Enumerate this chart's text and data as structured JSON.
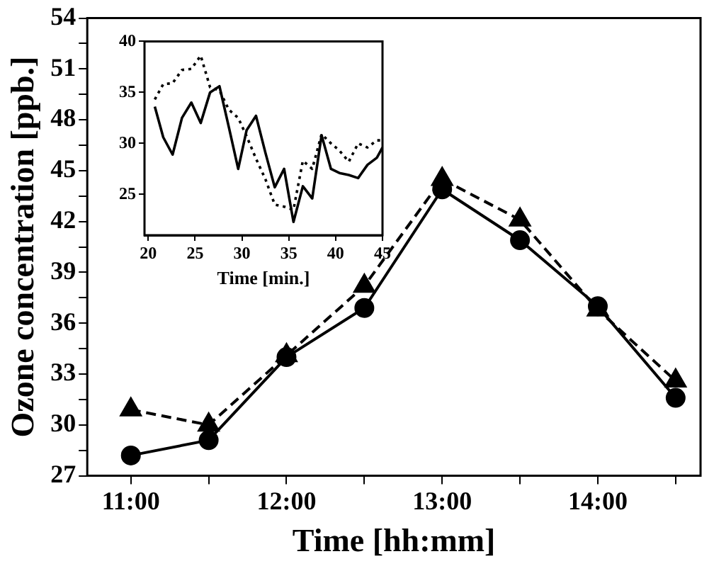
{
  "chart_data": [
    {
      "type": "line",
      "xlabel": "Time [hh:mm]",
      "ylabel": "Ozone concentration [ppb.]",
      "x": [
        11,
        11.5,
        12,
        12.5,
        13,
        13.5,
        14,
        14.5
      ],
      "series": [
        {
          "color": "#000000",
          "marker": "circle",
          "line_style": "solid",
          "values": [
            28.2,
            29.1,
            34.0,
            36.9,
            43.9,
            40.9,
            37.0,
            31.6
          ]
        },
        {
          "color": "#000000",
          "marker": "triangle",
          "line_style": "dashed",
          "values": [
            30.9,
            30.0,
            34.1,
            38.2,
            44.5,
            42.1,
            36.8,
            32.6
          ]
        }
      ],
      "xlim": [
        10.72,
        14.66
      ],
      "ylim": [
        27,
        54
      ],
      "xticks": [
        {
          "value": 11,
          "label": "11:00"
        },
        {
          "value": 11.5,
          "label": null
        },
        {
          "value": 12,
          "label": "12:00"
        },
        {
          "value": 12.5,
          "label": null
        },
        {
          "value": 13,
          "label": "13:00"
        },
        {
          "value": 13.5,
          "label": null
        },
        {
          "value": 14,
          "label": "14:00"
        },
        {
          "value": 14.5,
          "label": null
        }
      ],
      "yticks": [
        27,
        {
          "value": 28.5,
          "label": null
        },
        30,
        {
          "value": 31.5,
          "label": null
        },
        33,
        {
          "value": 34.5,
          "label": null
        },
        36,
        {
          "value": 37.5,
          "label": null
        },
        39,
        {
          "value": 40.5,
          "label": null
        },
        42,
        {
          "value": 43.5,
          "label": null
        },
        45,
        {
          "value": 46.5,
          "label": null
        },
        48,
        {
          "value": 49.5,
          "label": null
        },
        51,
        {
          "value": 52.5,
          "label": null
        },
        54
      ]
    },
    {
      "type": "line",
      "xlabel": "Time [min.]",
      "x": [
        20.7,
        21.6,
        22.6,
        23.6,
        24.6,
        25.6,
        26.6,
        27.6,
        28.6,
        29.6,
        30.5,
        31.5,
        32.5,
        33.5,
        34.5,
        35.5,
        36.5,
        37.5,
        38.5,
        39.5,
        40.4,
        41.4,
        42.4,
        43.4,
        44.4,
        45
      ],
      "series": [
        {
          "color": "#000000",
          "marker": "none",
          "line_style": "solid",
          "values": [
            33.6,
            30.6,
            28.9,
            32.5,
            34.0,
            32.0,
            35.0,
            35.6,
            31.6,
            27.5,
            31.3,
            32.7,
            29.1,
            25.7,
            27.5,
            22.3,
            25.8,
            24.6,
            30.8,
            27.5,
            27.1,
            26.9,
            26.6,
            27.9,
            28.6,
            29.6
          ]
        },
        {
          "color": "#000000",
          "marker": "none",
          "line_style": "dotted",
          "values": [
            34.3,
            35.8,
            35.9,
            37.2,
            37.3,
            38.6,
            35.5,
            35.2,
            33.3,
            32.5,
            30.7,
            28.5,
            26.5,
            24.0,
            23.8,
            23.5,
            28.3,
            27.5,
            30.9,
            30.0,
            29.3,
            28.2,
            30.0,
            29.6,
            30.3,
            30.3
          ]
        }
      ],
      "xlim": [
        19.6,
        45
      ],
      "ylim": [
        21,
        40
      ],
      "xticks": [
        20,
        25,
        30,
        35,
        40,
        45
      ],
      "yticks": [
        25,
        30,
        35,
        40
      ]
    }
  ]
}
